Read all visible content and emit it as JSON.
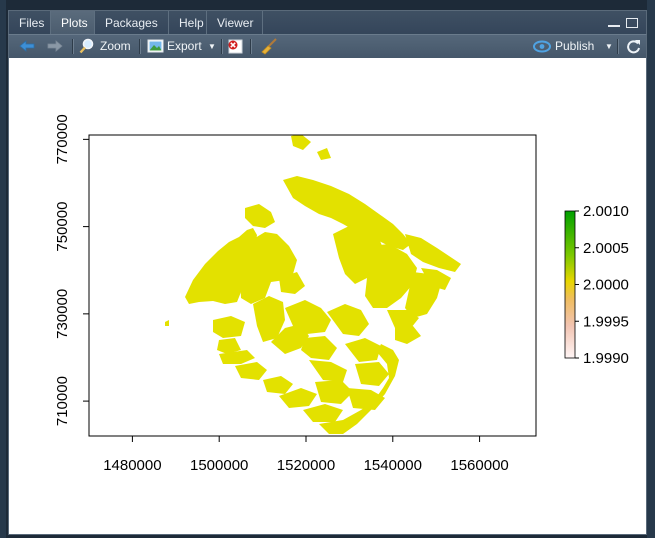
{
  "tabs": [
    {
      "label": "Files",
      "active": false
    },
    {
      "label": "Plots",
      "active": true
    },
    {
      "label": "Packages",
      "active": false
    },
    {
      "label": "Help",
      "active": false
    },
    {
      "label": "Viewer",
      "active": false
    }
  ],
  "toolbar": {
    "zoom_label": "Zoom",
    "export_label": "Export",
    "publish_label": "Publish"
  },
  "icons": {
    "back": "arrow-left-icon",
    "forward": "arrow-right-icon",
    "zoom": "magnifier-icon",
    "export": "image-export-icon",
    "remove": "remove-plot-icon",
    "clear": "broom-icon",
    "publish": "publish-icon",
    "refresh": "refresh-icon"
  },
  "colors": {
    "raster_fill": "#e3e100",
    "legend_top": "#00a000",
    "legend_mid": "#e8d600",
    "legend_bottom": "#fff5f5"
  },
  "chart_data": {
    "type": "heatmap",
    "title": "",
    "xlabel": "",
    "ylabel": "",
    "x_ticks": [
      1480000,
      1500000,
      1520000,
      1540000,
      1560000
    ],
    "x_tick_labels": [
      "1480000",
      "1500000",
      "1520000",
      "1540000",
      "1560000"
    ],
    "y_ticks": [
      710000,
      730000,
      750000,
      770000
    ],
    "y_tick_labels": [
      "710000",
      "730000",
      "750000",
      "770000"
    ],
    "xlim": [
      1470000,
      1573000
    ],
    "ylim": [
      702000,
      771000
    ],
    "legend": {
      "type": "colorbar",
      "placement": "right",
      "range": [
        1.999,
        2.001
      ],
      "ticks": [
        2.001,
        2.0005,
        2.0,
        1.9995,
        1.999
      ],
      "tick_labels": [
        "2.0010",
        "2.0005",
        "2.0000",
        "1.9995",
        "1.9990"
      ]
    },
    "raster_value": 2.0
  }
}
